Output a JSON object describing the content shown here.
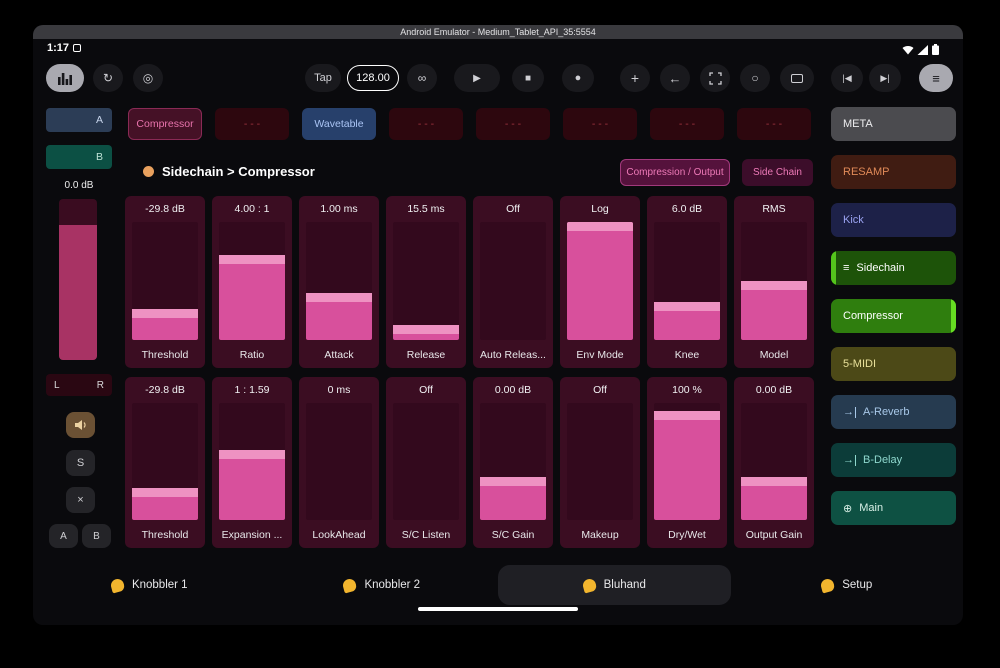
{
  "emulator_title": "Android Emulator - Medium_Tablet_API_35:5554",
  "status_bar": {
    "time": "1:17"
  },
  "toolbar": {
    "tap": "Tap",
    "tempo": "128.00",
    "icons": {
      "refresh": "↻",
      "target": "◎",
      "link": "∞",
      "play": "▶",
      "stop": "■",
      "record": "●",
      "add": "+",
      "back": "←",
      "loop": "○",
      "prev": "|◀",
      "next": "▶|",
      "menu": "≡"
    }
  },
  "track_row": {
    "slots": [
      "Compressor",
      "- - -",
      "Wavetable",
      "- - -",
      "- - -",
      "- - -",
      "- - -",
      "- - -"
    ]
  },
  "channel_strip": {
    "bank_a": "A",
    "bank_b": "B",
    "level": "0.0 dB",
    "meter_fill": 84,
    "left": "L",
    "right": "R",
    "solo": "S",
    "mute": "×",
    "ab": [
      "A",
      "B"
    ]
  },
  "header": {
    "title": "Sidechain > Compressor",
    "page_buttons": [
      "Compression / Output",
      "Side Chain"
    ]
  },
  "params": {
    "cells": [
      {
        "value": "-29.8 dB",
        "name": "Threshold",
        "fill": 26
      },
      {
        "value": "4.00 : 1",
        "name": "Ratio",
        "fill": 72
      },
      {
        "value": "1.00 ms",
        "name": "Attack",
        "fill": 40
      },
      {
        "value": "15.5 ms",
        "name": "Release",
        "fill": 13
      },
      {
        "value": "Off",
        "name": "Auto Releas...",
        "fill": 0
      },
      {
        "value": "Log",
        "name": "Env Mode",
        "fill": 100
      },
      {
        "value": "6.0 dB",
        "name": "Knee",
        "fill": 32
      },
      {
        "value": "RMS",
        "name": "Model",
        "fill": 50
      },
      {
        "value": "-29.8 dB",
        "name": "Threshold",
        "fill": 27
      },
      {
        "value": "1 : 1.59",
        "name": "Expansion ...",
        "fill": 60
      },
      {
        "value": "0 ms",
        "name": "LookAhead",
        "fill": 0
      },
      {
        "value": "Off",
        "name": "S/C Listen",
        "fill": 0
      },
      {
        "value": "0.00 dB",
        "name": "S/C Gain",
        "fill": 37
      },
      {
        "value": "Off",
        "name": "Makeup",
        "fill": 0
      },
      {
        "value": "100 %",
        "name": "Dry/Wet",
        "fill": 93
      },
      {
        "value": "0.00 dB",
        "name": "Output Gain",
        "fill": 37
      }
    ]
  },
  "sidebar": {
    "items": [
      {
        "label": "META"
      },
      {
        "label": "RESAMP"
      },
      {
        "label": "Kick"
      },
      {
        "label": "Sidechain",
        "icon": "≡"
      },
      {
        "label": "Compressor"
      },
      {
        "label": "5-MIDI"
      },
      {
        "label": "A-Reverb",
        "icon": "→"
      },
      {
        "label": "B-Delay",
        "icon": "→"
      },
      {
        "label": "Main",
        "icon": "⊕"
      }
    ]
  },
  "tabs": [
    {
      "label": "Knobbler 1"
    },
    {
      "label": "Knobbler 2"
    },
    {
      "label": "Bluhand"
    },
    {
      "label": "Setup"
    }
  ],
  "colors": {
    "slider_fill": "#d8509c",
    "slider_track": "#3b0d22",
    "accent_green": "#54c41c",
    "tab_hand_yellow": "#f2b52e"
  }
}
